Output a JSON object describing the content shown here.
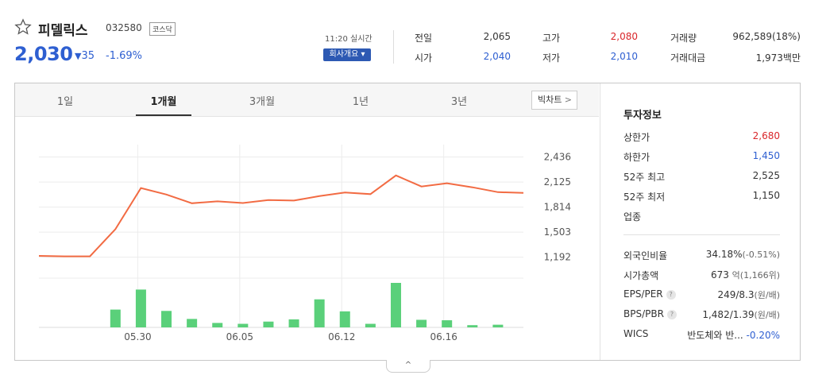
{
  "stock": {
    "name": "피델릭스",
    "code": "032580",
    "market": "코스닥",
    "price": "2,030",
    "change_arrow": "▼",
    "change": "35",
    "change_pct": "-1.69%",
    "time": "11:20 실시간",
    "info_button": "회사개요 ▾"
  },
  "quote": [
    {
      "label": "전일",
      "value": "2,065",
      "color": "default"
    },
    {
      "label": "고가",
      "value": "2,080",
      "color": "red"
    },
    {
      "label": "거래량",
      "value": "962,589(18%)",
      "color": "default"
    },
    {
      "label": "시가",
      "value": "2,040",
      "color": "blue"
    },
    {
      "label": "저가",
      "value": "2,010",
      "color": "blue"
    },
    {
      "label": "거래대금",
      "value": "1,973백만",
      "color": "default"
    }
  ],
  "tabs": {
    "items": [
      "1일",
      "1개월",
      "3개월",
      "1년",
      "3년"
    ],
    "active": "1개월",
    "big_chart": "빅차트",
    "big_chart_chevron": ">"
  },
  "chart_data": {
    "type": "line",
    "ylim": [
      1080,
      2590
    ],
    "y_ticks": [
      "2,436",
      "2,125",
      "1,814",
      "1,503",
      "1,192"
    ],
    "y_tick_values": [
      2436,
      2125,
      1814,
      1503,
      1192
    ],
    "x_ticks": [
      "05.30",
      "06.05",
      "06.12",
      "06.16"
    ],
    "x_tick_index": [
      4,
      8,
      12,
      16
    ],
    "price": [
      1208,
      1202,
      1202,
      1540,
      2050,
      1970,
      1862,
      1885,
      1865,
      1902,
      1895,
      1950,
      1995,
      1975,
      2207,
      2070,
      2110,
      2060,
      2000,
      1990
    ],
    "volume": [
      0,
      0,
      0,
      0.4,
      0.85,
      0.37,
      0.19,
      0.1,
      0.08,
      0.13,
      0.18,
      0.63,
      0.36,
      0.08,
      1.0,
      0.17,
      0.16,
      0.05,
      0.06,
      0
    ],
    "line_color": "#f26b43",
    "bar_color": "#5ad07a",
    "grid": true
  },
  "invest": {
    "title": "투자정보",
    "rows": [
      {
        "k": "상한가",
        "v": "2,680",
        "color": "red"
      },
      {
        "k": "하한가",
        "v": "1,450",
        "color": "blue"
      },
      {
        "k": "52주 최고",
        "v": "2,525",
        "color": "default"
      },
      {
        "k": "52주 최저",
        "v": "1,150",
        "color": "default"
      },
      {
        "k": "업종",
        "v": "",
        "color": "default"
      }
    ],
    "foreign_label": "외국인비율",
    "foreign_value": "34.18%",
    "foreign_change": "(-0.51%)",
    "mktcap_label": "시가총액",
    "mktcap_value": "673",
    "mktcap_unit": "억(1,166위)",
    "eps_label": "EPS/PER",
    "eps_value": "249/8.3",
    "eps_unit": "(원/배)",
    "bps_label": "BPS/PBR",
    "bps_value": "1,482/1.39",
    "bps_unit": "(원/배)",
    "help_mark": "?",
    "wics_label": "WICS",
    "wics_value": "반도체와 반...",
    "wics_change": "-0.20%"
  },
  "fold_label": "^"
}
